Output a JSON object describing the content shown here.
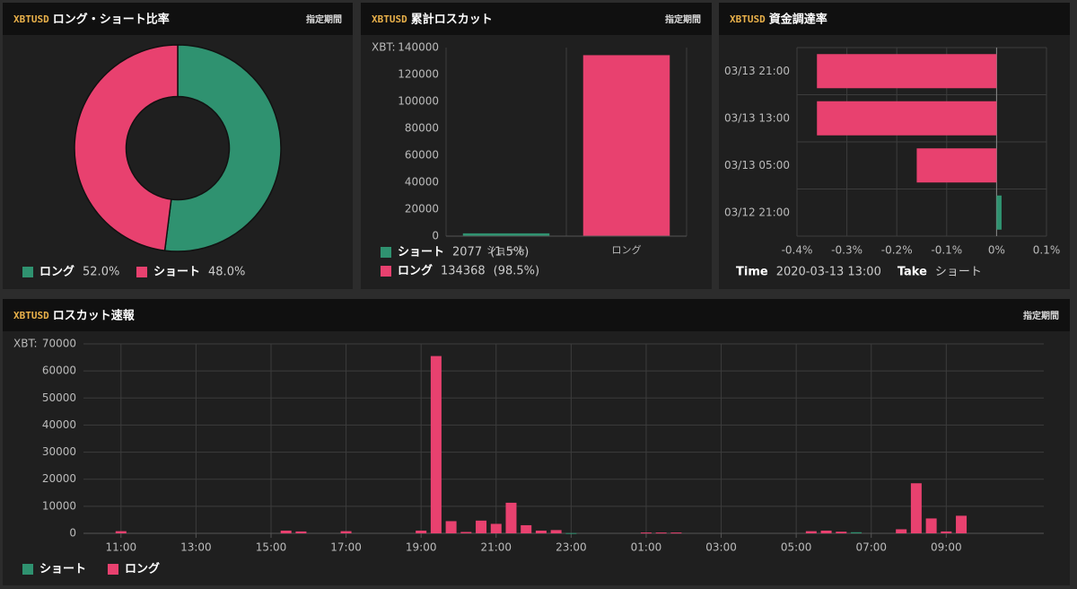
{
  "chart_data": [
    {
      "type": "pie",
      "symbol": "XBTUSD",
      "title": "ロング・ショート比率",
      "button": "指定期間",
      "categories": [
        "ロング",
        "ショート"
      ],
      "values": [
        52.0,
        48.0
      ],
      "value_labels": [
        "52.0%",
        "48.0%"
      ],
      "colors": [
        "#2f9270",
        "#e8416f"
      ],
      "hole": 0.5
    },
    {
      "type": "bar",
      "symbol": "XBTUSD",
      "title": "累計ロスカット",
      "button": "指定期間",
      "y_unit": "XBT:",
      "categories": [
        "ショート",
        "ロング"
      ],
      "values": [
        2077,
        134368
      ],
      "percent_labels": [
        "(1.5%)",
        "(98.5%)"
      ],
      "colors": [
        "#2f9270",
        "#e8416f"
      ],
      "ylim": [
        0,
        140000
      ],
      "yticks": [
        0,
        20000,
        40000,
        60000,
        80000,
        100000,
        120000,
        140000
      ],
      "grid": false
    },
    {
      "type": "barh",
      "symbol": "XBTUSD",
      "title": "資金調達率",
      "categories": [
        "03/13 21:00",
        "03/13 13:00",
        "03/13 05:00",
        "03/12 21:00"
      ],
      "values": [
        -0.36,
        -0.36,
        -0.16,
        0.01
      ],
      "colors": [
        "#e8416f",
        "#e8416f",
        "#e8416f",
        "#2f9270"
      ],
      "xlim": [
        -0.4,
        0.1
      ],
      "xticks": [
        {
          "value": -0.4,
          "label": "-0.4%"
        },
        {
          "value": -0.3,
          "label": "-0.3%"
        },
        {
          "value": -0.2,
          "label": "-0.2%"
        },
        {
          "value": -0.1,
          "label": "-0.1%"
        },
        {
          "value": 0,
          "label": "0%"
        },
        {
          "value": 0.1,
          "label": "0.1%"
        }
      ],
      "grid": true,
      "info": [
        {
          "label": "Time",
          "value": "2020-03-13 13:00"
        },
        {
          "label": "Take",
          "value": "ショート"
        }
      ]
    },
    {
      "type": "bar",
      "symbol": "XBTUSD",
      "title": "ロスカット速報",
      "button": "指定期間",
      "y_unit": "XBT:",
      "series": [
        {
          "name": "ショート",
          "color": "#2f9270",
          "x": [
            23.0,
            30.6
          ],
          "values": [
            100,
            400
          ]
        },
        {
          "name": "ロング",
          "color": "#e8416f",
          "x": [
            11.0,
            15.4,
            15.8,
            17.0,
            19.0,
            19.4,
            19.8,
            20.2,
            20.6,
            21.0,
            21.4,
            21.8,
            22.2,
            22.6,
            25.0,
            25.4,
            25.8,
            29.4,
            29.8,
            30.2,
            31.8,
            32.2,
            32.6,
            33.0,
            33.4
          ],
          "values": [
            800,
            1000,
            700,
            800,
            1000,
            65500,
            4500,
            500,
            4700,
            3500,
            11300,
            3000,
            1000,
            1200,
            300,
            300,
            300,
            800,
            1000,
            600,
            1500,
            18500,
            5500,
            700,
            6500
          ]
        }
      ],
      "xlim": [
        10.0,
        35.6
      ],
      "xticks": [
        {
          "value": 11,
          "label": "11:00"
        },
        {
          "value": 13,
          "label": "13:00"
        },
        {
          "value": 15,
          "label": "15:00"
        },
        {
          "value": 17,
          "label": "17:00"
        },
        {
          "value": 19,
          "label": "19:00"
        },
        {
          "value": 21,
          "label": "21:00"
        },
        {
          "value": 23,
          "label": "23:00"
        },
        {
          "value": 25,
          "label": "01:00"
        },
        {
          "value": 27,
          "label": "03:00"
        },
        {
          "value": 29,
          "label": "05:00"
        },
        {
          "value": 31,
          "label": "07:00"
        },
        {
          "value": 33,
          "label": "09:00"
        }
      ],
      "ylim": [
        0,
        70000
      ],
      "yticks": [
        0,
        10000,
        20000,
        30000,
        40000,
        50000,
        60000,
        70000
      ],
      "grid": true
    }
  ]
}
